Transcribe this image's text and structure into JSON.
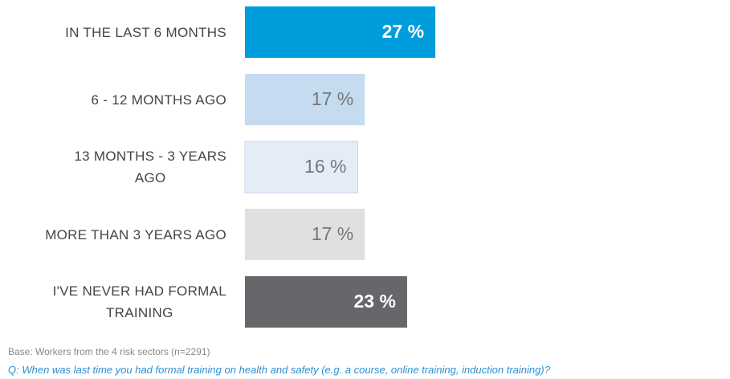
{
  "chart_data": {
    "type": "bar",
    "orientation": "horizontal",
    "categories": [
      "IN THE LAST 6 MONTHS",
      "6 - 12 MONTHS AGO",
      "13 MONTHS - 3 YEARS\nAGO",
      "MORE THAN 3 YEARS AGO",
      "I'VE NEVER HAD FORMAL\nTRAINING"
    ],
    "values": [
      27,
      17,
      16,
      17,
      23
    ],
    "value_labels": [
      "27 %",
      "17 %",
      "16 %",
      "17 %",
      "23 %"
    ],
    "colors": [
      "#009ddc",
      "#c5dbef",
      "#e4ecf8",
      "#e0e0e0",
      "#66676b"
    ],
    "label_colors": [
      "#ffffff",
      "#777777",
      "#777777",
      "#777777",
      "#ffffff"
    ],
    "footnote": "Base: Workers from the 4 risk sectors (n=2291)",
    "question": "Q: When was last time you had formal training on health and safety (e.g. a course, online training, induction training)?"
  }
}
